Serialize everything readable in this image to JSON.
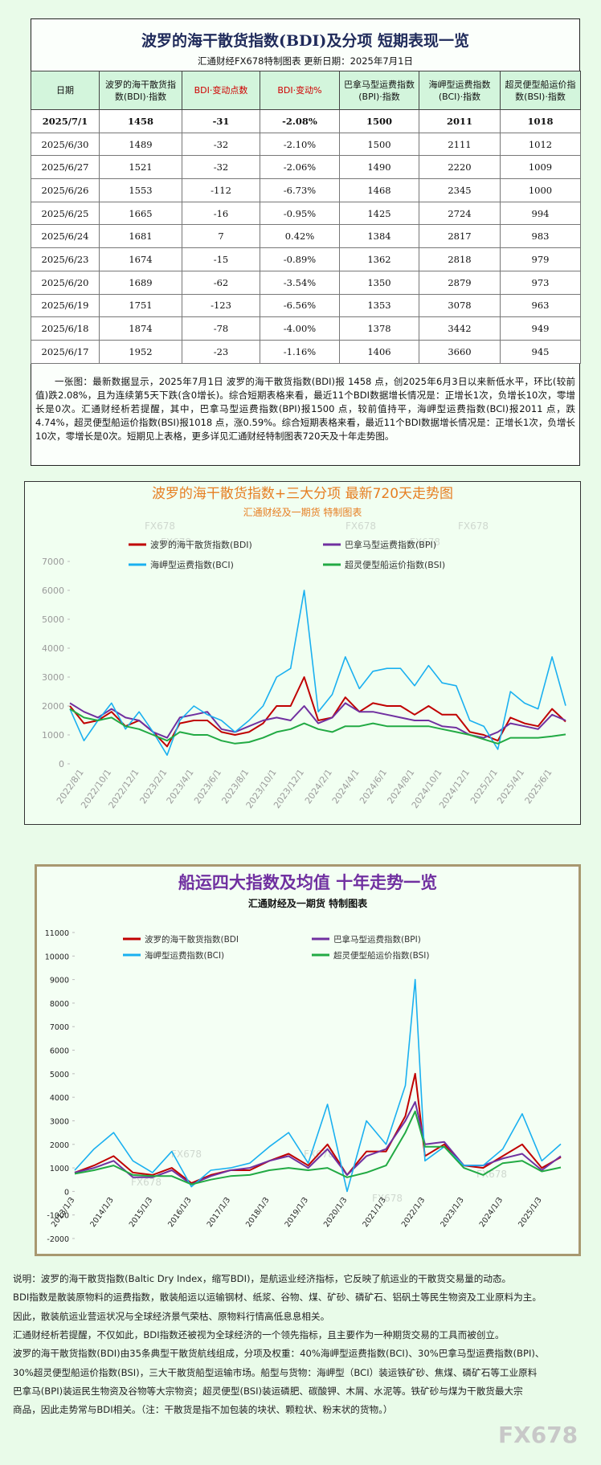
{
  "header": {
    "title": "波罗的海干散货指数(BDI)及分项 短期表现一览",
    "subtitle": "汇通财经FX678特制图表      更新日期：2025年7月1日"
  },
  "table": {
    "header": [
      "日期",
      "波罗的海干散货指数(BDI)·指数",
      "BDI·变动点数",
      "BDI·变动%",
      "巴拿马型运费指数(BPI)·指数",
      "海岬型运费指数(BCI)·指数",
      "超灵便型船运价指数(BSI)·指数"
    ],
    "rows": [
      [
        "2025/7/1",
        "1458",
        "-31",
        "-2.08%",
        "1500",
        "2011",
        "1018"
      ],
      [
        "2025/6/30",
        "1489",
        "-32",
        "-2.10%",
        "1500",
        "2111",
        "1012"
      ],
      [
        "2025/6/27",
        "1521",
        "-32",
        "-2.06%",
        "1490",
        "2220",
        "1009"
      ],
      [
        "2025/6/26",
        "1553",
        "-112",
        "-6.73%",
        "1468",
        "2345",
        "1000"
      ],
      [
        "2025/6/25",
        "1665",
        "-16",
        "-0.95%",
        "1425",
        "2724",
        "994"
      ],
      [
        "2025/6/24",
        "1681",
        "7",
        "0.42%",
        "1384",
        "2817",
        "983"
      ],
      [
        "2025/6/23",
        "1674",
        "-15",
        "-0.89%",
        "1362",
        "2818",
        "979"
      ],
      [
        "2025/6/20",
        "1689",
        "-62",
        "-3.54%",
        "1350",
        "2879",
        "973"
      ],
      [
        "2025/6/19",
        "1751",
        "-123",
        "-6.56%",
        "1353",
        "3078",
        "963"
      ],
      [
        "2025/6/18",
        "1874",
        "-78",
        "-4.00%",
        "1378",
        "3442",
        "949"
      ],
      [
        "2025/6/17",
        "1952",
        "-23",
        "-1.16%",
        "1406",
        "3660",
        "945"
      ]
    ]
  },
  "summary": "一张图：最新数据显示，2025年7月1日 波罗的海干散货指数(BDI)报 1458 点，创2025年6月3日以来新低水平，环比(较前值)跌2.08%，且为连续第5天下跌(含0增长)。综合短期表格来看，最近11个BDI数据增长情况是：正增长1次，负增长10次，零增长是0次。汇通财经析若提醒，其中，巴拿马型运费指数(BPI)报1500 点，较前值持平，海岬型运费指数(BCI)报2011 点，跌4.74%，超灵便型船运价指数(BSI)报1018 点，涨0.59%。综合短期表格来看，最近11个BDI数据增长情况是：正增长1次，负增长10次，零增长是0次。短期见上表格，更多详见汇通财经特制图表720天及十年走势图。",
  "chart_data": [
    {
      "type": "line",
      "title": "波罗的海干散货指数+三大分项  最新720天走势图",
      "subtitle": "汇通财经及一期货  特制图表",
      "title_color": "#e67e22",
      "x": [
        "2022/7/1",
        "2022/8/1",
        "2022/9/1",
        "2022/10/1",
        "2022/11/1",
        "2022/12/1",
        "2023/1/1",
        "2023/2/1",
        "2023/3/1",
        "2023/4/1",
        "2023/5/1",
        "2023/6/1",
        "2023/7/1",
        "2023/8/1",
        "2023/9/1",
        "2023/10/1",
        "2023/11/1",
        "2023/12/1",
        "2024/1/1",
        "2024/2/1",
        "2024/3/1",
        "2024/4/1",
        "2024/5/1",
        "2024/6/1",
        "2024/7/1",
        "2024/8/1",
        "2024/9/1",
        "2024/10/1",
        "2024/11/1",
        "2024/12/1",
        "2025/1/1",
        "2025/2/1",
        "2025/3/1",
        "2025/4/1",
        "2025/5/1",
        "2025/6/1",
        "2025/7/1"
      ],
      "series": [
        {
          "name": "波罗的海干散货指数(BDI)",
          "color": "#c00000",
          "values": [
            2000,
            1400,
            1500,
            1800,
            1300,
            1500,
            1100,
            600,
            1400,
            1500,
            1500,
            1100,
            1000,
            1100,
            1400,
            2000,
            2000,
            3000,
            1500,
            1600,
            2300,
            1800,
            2100,
            2000,
            2000,
            1700,
            2000,
            1700,
            1700,
            1100,
            1000,
            800,
            1600,
            1400,
            1300,
            1900,
            1458
          ]
        },
        {
          "name": "巴拿马型运费指数(BPI)",
          "color": "#7030a0",
          "values": [
            2100,
            1800,
            1600,
            1900,
            1600,
            1500,
            1100,
            900,
            1600,
            1700,
            1800,
            1200,
            1100,
            1300,
            1500,
            1600,
            1500,
            2000,
            1400,
            1600,
            2100,
            1800,
            1800,
            1700,
            1600,
            1500,
            1500,
            1300,
            1250,
            1000,
            900,
            1100,
            1400,
            1300,
            1200,
            1700,
            1500
          ]
        },
        {
          "name": "海岬型运费指数(BCI)",
          "color": "#1ab0f0",
          "values": [
            1900,
            800,
            1500,
            2100,
            1200,
            1800,
            1100,
            300,
            1500,
            2000,
            1700,
            1500,
            1100,
            1500,
            2000,
            3000,
            3300,
            6000,
            1800,
            2400,
            3700,
            2600,
            3200,
            3300,
            3300,
            2700,
            3400,
            2800,
            2700,
            1500,
            1300,
            500,
            2500,
            2100,
            1900,
            3700,
            2011
          ]
        },
        {
          "name": "超灵便型船运价指数(BSI)",
          "color": "#22aa44",
          "values": [
            1900,
            1600,
            1500,
            1600,
            1300,
            1200,
            1000,
            800,
            1100,
            1000,
            1000,
            800,
            700,
            750,
            900,
            1100,
            1200,
            1400,
            1200,
            1100,
            1300,
            1300,
            1400,
            1300,
            1300,
            1300,
            1300,
            1200,
            1100,
            1000,
            850,
            700,
            900,
            900,
            900,
            950,
            1018
          ]
        }
      ],
      "xlim": [
        "2022/7/1",
        "2025/7/1"
      ],
      "xticks": [
        "2022/8/1",
        "2022/10/1",
        "2022/12/1",
        "2023/2/1",
        "2023/4/1",
        "2023/6/1",
        "2023/8/1",
        "2023/10/1",
        "2023/12/1",
        "2024/2/1",
        "2024/4/1",
        "2024/6/1",
        "2024/8/1",
        "2024/10/1",
        "2024/12/1",
        "2025/2/1",
        "2025/4/1",
        "2025/6/1"
      ],
      "ylim": [
        0,
        7000
      ],
      "yticks": [
        0,
        1000,
        2000,
        3000,
        4000,
        5000,
        6000,
        7000
      ]
    },
    {
      "type": "line",
      "title": "船运四大指数及均值 十年走势一览",
      "subtitle": "汇通财经及一期货 特制图表",
      "title_color": "#7030a0",
      "x": [
        "2013/1/3",
        "2013/7/3",
        "2014/1/3",
        "2014/7/3",
        "2015/1/3",
        "2015/7/3",
        "2016/1/3",
        "2016/7/3",
        "2017/1/3",
        "2017/7/3",
        "2018/1/3",
        "2018/7/3",
        "2019/1/3",
        "2019/7/3",
        "2020/1/3",
        "2020/7/3",
        "2021/1/3",
        "2021/7/3",
        "2021/10/3",
        "2022/1/3",
        "2022/7/3",
        "2023/1/3",
        "2023/7/3",
        "2024/1/3",
        "2024/7/3",
        "2025/1/3",
        "2025/7/1"
      ],
      "series": [
        {
          "name": "波罗的海干散货指数(BDI",
          "color": "#c00000",
          "values": [
            800,
            1100,
            1500,
            800,
            700,
            1000,
            350,
            700,
            900,
            900,
            1300,
            1600,
            1100,
            2000,
            700,
            1700,
            1700,
            3200,
            5000,
            1500,
            2000,
            1100,
            1000,
            1500,
            2000,
            1000,
            1458
          ]
        },
        {
          "name": "巴拿马型运费指数(BPI)",
          "color": "#7030a0",
          "values": [
            800,
            1000,
            1300,
            600,
            600,
            900,
            300,
            650,
            900,
            1000,
            1300,
            1500,
            1000,
            1800,
            700,
            1500,
            1800,
            3000,
            3800,
            2000,
            2100,
            1100,
            1100,
            1400,
            1600,
            900,
            1500
          ]
        },
        {
          "name": "海岬型运费指数(BCI)",
          "color": "#1ab0f0",
          "values": [
            900,
            1800,
            2500,
            1300,
            800,
            1700,
            200,
            900,
            1000,
            1200,
            1900,
            2500,
            1200,
            3700,
            0,
            3000,
            2000,
            4500,
            9000,
            1300,
            1900,
            1100,
            1100,
            1800,
            3300,
            1300,
            2011
          ]
        },
        {
          "name": "超灵便型船运价指数(BSI)",
          "color": "#22aa44",
          "values": [
            750,
            900,
            1100,
            700,
            650,
            650,
            300,
            500,
            650,
            700,
            900,
            1000,
            900,
            1000,
            600,
            800,
            1100,
            2500,
            3400,
            1900,
            1900,
            1000,
            700,
            1200,
            1300,
            850,
            1018
          ]
        }
      ],
      "xlim": [
        "2013/1/3",
        "2025/7/1"
      ],
      "xticks": [
        "2013/1/3",
        "2014/1/3",
        "2015/1/3",
        "2016/1/3",
        "2017/1/3",
        "2018/1/3",
        "2019/1/3",
        "2020/1/3",
        "2021/1/3",
        "2022/1/3",
        "2023/1/3",
        "2024/1/3",
        "2025/1/3"
      ],
      "ylim": [
        -2000,
        11000
      ],
      "yticks": [
        -2000,
        -1000,
        0,
        1000,
        2000,
        3000,
        4000,
        5000,
        6000,
        7000,
        8000,
        9000,
        10000,
        11000
      ]
    }
  ],
  "notes": [
    "说明：波罗的海干散货指数(Baltic Dry Index，缩写BDI)，是航运业经济指标，它反映了航运业的干散货交易量的动态。",
    "BDI指数是散装原物料的运费指数，散装船运以运输钢材、纸浆、谷物、煤、矿砂、磷矿石、铝矾土等民生物资及工业原料为主。",
    "因此，散装航运业营运状况与全球经济景气荣枯、原物料行情高低息息相关。",
    "汇通财经析若提醒，不仅如此，BDI指数还被视为全球经济的一个领先指标，且主要作为一种期货交易的工具而被创立。",
    "波罗的海干散货指数(BDI)由35条典型干散货航线组成，分项及权重：40%海岬型运费指数(BCI)、30%巴拿马型运费指数(BPI)、",
    "30%超灵便型船运价指数(BSI)，三大干散货船型运输市场。船型与货物：海岬型（BCI）装运铁矿砂、焦煤、磷矿石等工业原料",
    "巴拿马(BPI)装运民生物资及谷物等大宗物资；超灵便型(BSI)装运磷肥、碳酸钾、木屑、水泥等。铁矿砂与煤为干散货最大宗",
    "商品，因此走势常与BDI相关。（注：干散货是指不加包装的块状、颗粒状、粉末状的货物。）"
  ],
  "watermark": "FX678"
}
